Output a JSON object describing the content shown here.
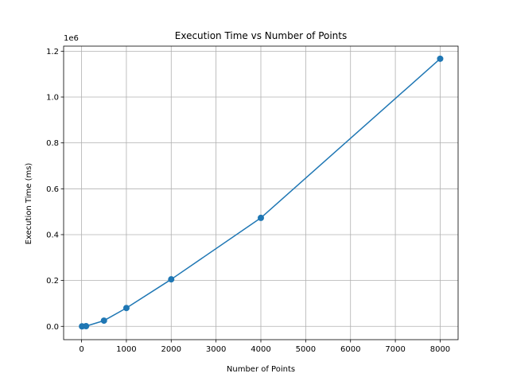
{
  "chart_data": {
    "type": "line",
    "title": "Execution Time vs Number of Points",
    "xlabel": "Number of Points",
    "ylabel": "Execution Time (ms)",
    "y_offset_label": "1e6",
    "xlim": [
      -400,
      8400
    ],
    "ylim": [
      -58000,
      1222000
    ],
    "grid": true,
    "x_ticks": [
      0,
      1000,
      2000,
      3000,
      4000,
      5000,
      6000,
      7000,
      8000
    ],
    "x_tick_labels": [
      "0",
      "1000",
      "2000",
      "3000",
      "4000",
      "5000",
      "6000",
      "7000",
      "8000"
    ],
    "y_ticks": [
      0,
      200000,
      400000,
      600000,
      800000,
      1000000,
      1200000
    ],
    "y_tick_labels": [
      "0.0",
      "0.2",
      "0.4",
      "0.6",
      "0.8",
      "1.0",
      "1.2"
    ],
    "series": [
      {
        "color": "#1f77b4",
        "marker": "circle",
        "x": [
          10,
          100,
          500,
          1000,
          2000,
          4000,
          8000
        ],
        "y": [
          100,
          1000,
          25000,
          80000,
          205000,
          473000,
          1167000
        ]
      }
    ]
  }
}
